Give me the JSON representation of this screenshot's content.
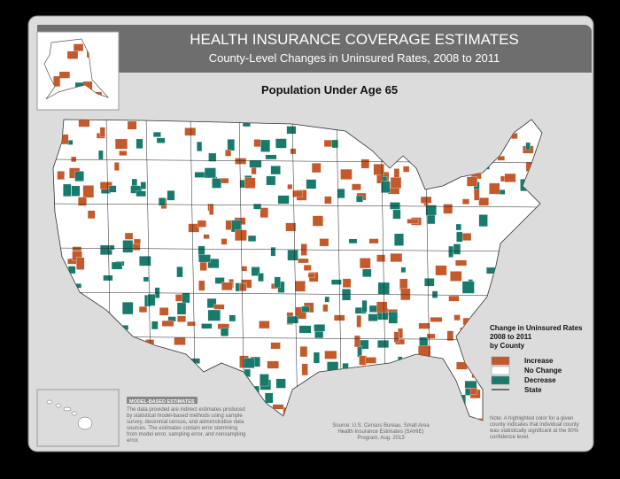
{
  "header": {
    "title": "HEALTH INSURANCE COVERAGE ESTIMATES",
    "subtitle": "County-Level Changes in Uninsured Rates, 2008 to 2011"
  },
  "map": {
    "title": "Population Under Age 65"
  },
  "legend": {
    "title_lines": [
      "Change in Uninsured Rates",
      "2008 to 2011",
      "by County"
    ],
    "items": [
      {
        "label": "Increase",
        "color": "#c45a2c"
      },
      {
        "label": "No Change",
        "color": "#ffffff"
      },
      {
        "label": "Decrease",
        "color": "#177a6b"
      },
      {
        "label": "State",
        "color": "#000000"
      }
    ]
  },
  "model_box": {
    "title": "MODEL-BASED ESTIMATES",
    "text": "The data provided are indirect estimates produced by statistical model-based methods using sample survey, decennial census, and administrative data sources. The estimates contain error stemming from model error, sampling error, and nonsampling error."
  },
  "source": "Source: U.S. Census Bureau, Small Area Health Insurance Estimates (SAHIE) Program, Aug. 2013",
  "note": "Note: A highlighted color for a given county indicates that individual county was statistically significant at the 90% confidence level."
}
